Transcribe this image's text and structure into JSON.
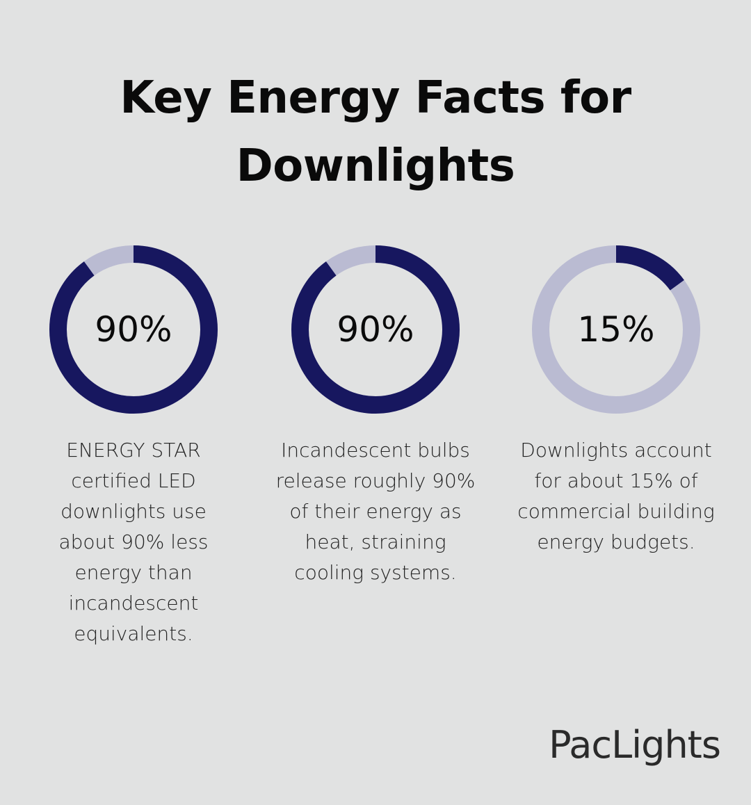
{
  "title": "Key Energy Facts for Downlights",
  "chart_data": [
    {
      "type": "donut",
      "values": [
        90
      ],
      "value_labels": [
        "90%"
      ],
      "ylim": [
        0,
        100
      ],
      "color": "#17175f",
      "track_color": "#babbd2",
      "caption": "ENERGY STAR certified LED downlights use about 90% less energy than incandescent equivalents."
    },
    {
      "type": "donut",
      "values": [
        90
      ],
      "value_labels": [
        "90%"
      ],
      "ylim": [
        0,
        100
      ],
      "color": "#17175f",
      "track_color": "#babbd2",
      "caption": "Incandescent bulbs release roughly 90% of their energy as heat, straining cooling systems."
    },
    {
      "type": "donut",
      "values": [
        15
      ],
      "value_labels": [
        "15%"
      ],
      "ylim": [
        0,
        100
      ],
      "color": "#17175f",
      "track_color": "#babbd2",
      "caption": "Downlights account for about 15% of commercial building energy budgets."
    }
  ],
  "brand": "PacLights"
}
